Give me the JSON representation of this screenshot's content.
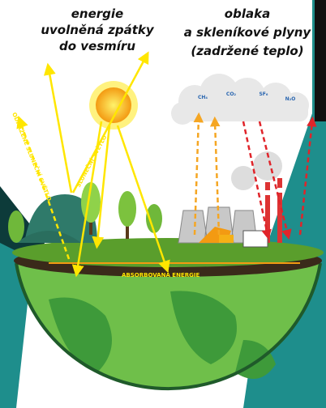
{
  "labels": {
    "released_energy": [
      "energie",
      "uvolněná zpátky",
      "do vesmíru"
    ],
    "greenhouse": [
      "oblaka",
      "a skleníkové plyny",
      "(zadržené teplo)"
    ],
    "reflected_light": "ODRAŽENÉ SLUNEČNÍ SVĚTLO",
    "sunlight": "SLUNEČNÍ SVĚTLO",
    "absorbed": "ABSORBOVANÁ ENERGIE"
  },
  "gases": [
    "CH₄",
    "CO₂",
    "SF₆",
    "N₂O"
  ]
}
